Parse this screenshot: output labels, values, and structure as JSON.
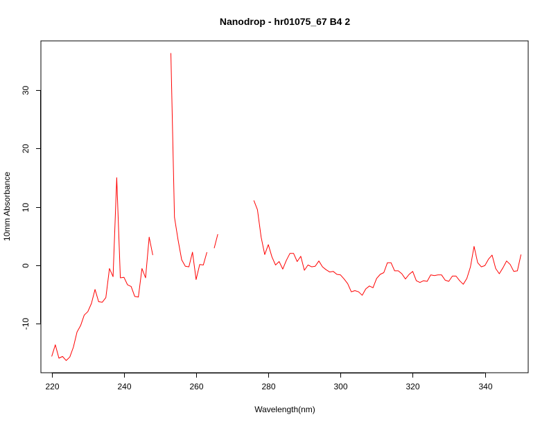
{
  "chart_data": {
    "type": "line",
    "title": "Nanodrop - hr01075_67 B4 2",
    "xlabel": "Wavelength(nm)",
    "ylabel": "10mm Absorbance",
    "xlim": [
      217,
      352
    ],
    "ylim": [
      -18.5,
      38.5
    ],
    "x_ticks": [
      220,
      240,
      260,
      280,
      300,
      320,
      340
    ],
    "y_ticks": [
      -10,
      0,
      10,
      20,
      30
    ],
    "grid": false,
    "legend": "none",
    "series": [
      {
        "color": "#ff0000",
        "segments": [
          [
            [
              220,
              -15.7
            ],
            [
              221,
              -13.7
            ],
            [
              222,
              -16
            ],
            [
              223,
              -15.7
            ],
            [
              224,
              -16.4
            ],
            [
              225,
              -15.8
            ],
            [
              226,
              -14.1
            ],
            [
              227,
              -11.5
            ],
            [
              228,
              -10.4
            ],
            [
              229,
              -8.6
            ],
            [
              230,
              -8.0
            ],
            [
              231,
              -6.6
            ],
            [
              232,
              -4.2
            ],
            [
              233,
              -6.3
            ],
            [
              234,
              -6.4
            ],
            [
              235,
              -5.6
            ],
            [
              236,
              -0.6
            ],
            [
              237,
              -2.0
            ],
            [
              238,
              15.0
            ],
            [
              239,
              -2.2
            ],
            [
              240,
              -2.1
            ],
            [
              241,
              -3.4
            ],
            [
              242,
              -3.7
            ],
            [
              243,
              -5.4
            ],
            [
              244,
              -5.5
            ],
            [
              245,
              -0.6
            ],
            [
              246,
              -2.2
            ],
            [
              247,
              4.8
            ],
            [
              248,
              1.7
            ]
          ],
          [
            [
              253,
              36.4
            ],
            [
              254,
              8.2
            ],
            [
              255,
              4.3
            ],
            [
              256,
              0.9
            ],
            [
              257,
              -0.2
            ],
            [
              258,
              -0.3
            ],
            [
              259,
              2.2
            ],
            [
              260,
              -2.5
            ],
            [
              261,
              0.1
            ],
            [
              262,
              0.0
            ],
            [
              263,
              2.2
            ]
          ],
          [
            [
              265,
              2.9
            ],
            [
              266,
              5.3
            ]
          ],
          [
            [
              276,
              11.1
            ],
            [
              277,
              9.5
            ],
            [
              278,
              4.8
            ],
            [
              279,
              1.8
            ],
            [
              280,
              3.5
            ],
            [
              281,
              1.4
            ],
            [
              282,
              0.0
            ],
            [
              283,
              0.6
            ],
            [
              284,
              -0.7
            ],
            [
              285,
              0.8
            ],
            [
              286,
              2.0
            ],
            [
              287,
              2.0
            ],
            [
              288,
              0.6
            ],
            [
              289,
              1.5
            ],
            [
              290,
              -0.9
            ],
            [
              291,
              0.0
            ],
            [
              292,
              -0.3
            ],
            [
              293,
              -0.2
            ],
            [
              294,
              0.7
            ],
            [
              295,
              -0.3
            ],
            [
              296,
              -0.8
            ],
            [
              297,
              -1.2
            ],
            [
              298,
              -1.1
            ],
            [
              299,
              -1.6
            ],
            [
              300,
              -1.7
            ],
            [
              301,
              -2.4
            ],
            [
              302,
              -3.2
            ],
            [
              303,
              -4.6
            ],
            [
              304,
              -4.4
            ],
            [
              305,
              -4.6
            ],
            [
              306,
              -5.2
            ],
            [
              307,
              -4.1
            ],
            [
              308,
              -3.6
            ],
            [
              309,
              -3.9
            ],
            [
              310,
              -2.3
            ],
            [
              311,
              -1.6
            ],
            [
              312,
              -1.3
            ],
            [
              313,
              0.4
            ],
            [
              314,
              0.4
            ],
            [
              315,
              -1.0
            ],
            [
              316,
              -1.0
            ],
            [
              317,
              -1.5
            ],
            [
              318,
              -2.4
            ],
            [
              319,
              -1.6
            ],
            [
              320,
              -1.1
            ],
            [
              321,
              -2.7
            ],
            [
              322,
              -3.0
            ],
            [
              323,
              -2.7
            ],
            [
              324,
              -2.8
            ],
            [
              325,
              -1.7
            ],
            [
              326,
              -1.8
            ],
            [
              327,
              -1.7
            ],
            [
              328,
              -1.7
            ],
            [
              329,
              -2.6
            ],
            [
              330,
              -2.8
            ],
            [
              331,
              -1.9
            ],
            [
              332,
              -1.9
            ],
            [
              333,
              -2.7
            ],
            [
              334,
              -3.3
            ],
            [
              335,
              -2.3
            ],
            [
              336,
              -0.3
            ],
            [
              337,
              3.2
            ],
            [
              338,
              0.4
            ],
            [
              339,
              -0.3
            ],
            [
              340,
              -0.1
            ],
            [
              341,
              1.0
            ],
            [
              342,
              1.7
            ],
            [
              343,
              -0.6
            ],
            [
              344,
              -1.5
            ],
            [
              345,
              -0.5
            ],
            [
              346,
              0.7
            ],
            [
              347,
              0.1
            ],
            [
              348,
              -1.1
            ],
            [
              349,
              -1.0
            ],
            [
              350,
              1.8
            ]
          ]
        ]
      }
    ]
  }
}
